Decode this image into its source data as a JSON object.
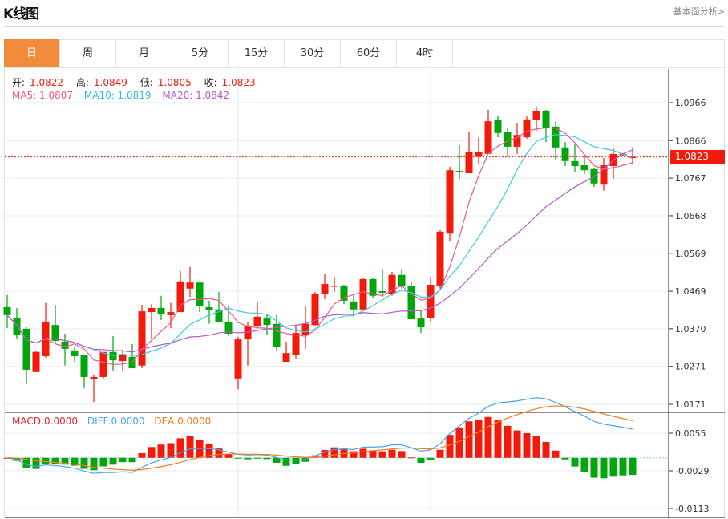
{
  "header": {
    "title": "K线图",
    "link": "基本面分析>"
  },
  "tabs": [
    {
      "label": "日",
      "active": true
    },
    {
      "label": "周"
    },
    {
      "label": "月"
    },
    {
      "label": "5分"
    },
    {
      "label": "15分"
    },
    {
      "label": "30分"
    },
    {
      "label": "60分"
    },
    {
      "label": "4时"
    }
  ],
  "ohlc": {
    "open_label": "开:",
    "open": "1.0822",
    "high_label": "高:",
    "high": "1.0849",
    "low_label": "低:",
    "low": "1.0805",
    "close_label": "收:",
    "close": "1.0823"
  },
  "ma": {
    "ma5": "MA5: 1.0807",
    "ma10": "MA10: 1.0819",
    "ma20": "MA20: 1.0842"
  },
  "macd": {
    "macd": "MACD:0.0000",
    "diff": "DIFF:0.0000",
    "dea": "DEA:0.0000"
  },
  "current_price": "1.0823",
  "colors": {
    "up": "#f21a0a",
    "down": "#00a60a",
    "ma5": "#f0588a",
    "ma10": "#3ccbe0",
    "ma20": "#b55ac8",
    "diff": "#4aa3e8",
    "dea": "#f57b1f",
    "accent": "#f28c3c"
  },
  "chart_data": {
    "type": "candlestick",
    "price_axis": {
      "ticks": [
        "1.0966",
        "1.0866",
        "1.0767",
        "1.0668",
        "1.0569",
        "1.0469",
        "1.0370",
        "1.0271",
        "1.0171"
      ],
      "range": [
        1.0171,
        1.0966
      ]
    },
    "macd_axis": {
      "ticks": [
        "0.0055",
        "-0.0029",
        "-0.0113"
      ],
      "range": [
        -0.0113,
        0.0055
      ]
    },
    "grid": true,
    "candles": [
      [
        1.0427,
        1.0459,
        1.0372,
        1.0406
      ],
      [
        1.0399,
        1.0425,
        1.0344,
        1.0353
      ],
      [
        1.037,
        1.0374,
        1.0224,
        1.0262
      ],
      [
        1.0256,
        1.0311,
        1.0256,
        1.0309
      ],
      [
        1.0298,
        1.0438,
        1.0294,
        1.0389
      ],
      [
        1.038,
        1.0433,
        1.0334,
        1.0338
      ],
      [
        1.0336,
        1.0357,
        1.0273,
        1.0317
      ],
      [
        1.0313,
        1.0321,
        1.0283,
        1.0298
      ],
      [
        1.03,
        1.03,
        1.0213,
        1.0243
      ],
      [
        1.0237,
        1.0249,
        1.0177,
        1.0243
      ],
      [
        1.0243,
        1.0309,
        1.0239,
        1.0309
      ],
      [
        1.0309,
        1.0351,
        1.026,
        1.0287
      ],
      [
        1.0285,
        1.0315,
        1.026,
        1.0302
      ],
      [
        1.0296,
        1.033,
        1.0266,
        1.0266
      ],
      [
        1.0273,
        1.0433,
        1.0266,
        1.0416
      ],
      [
        1.0414,
        1.0435,
        1.0342,
        1.0425
      ],
      [
        1.0425,
        1.0457,
        1.0393,
        1.0408
      ],
      [
        1.0406,
        1.0438,
        1.0372,
        1.0414
      ],
      [
        1.0414,
        1.0522,
        1.0414,
        1.0495
      ],
      [
        1.0476,
        1.0533,
        1.0454,
        1.0492
      ],
      [
        1.0492,
        1.0492,
        1.0414,
        1.0429
      ],
      [
        1.0427,
        1.0444,
        1.0383,
        1.0419
      ],
      [
        1.0421,
        1.0467,
        1.0387,
        1.0387
      ],
      [
        1.0389,
        1.0433,
        1.0351,
        1.0357
      ],
      [
        1.0239,
        1.0349,
        1.0211,
        1.0342
      ],
      [
        1.0342,
        1.0387,
        1.0273,
        1.0376
      ],
      [
        1.0376,
        1.0442,
        1.037,
        1.0402
      ],
      [
        1.0397,
        1.0406,
        1.0353,
        1.038
      ],
      [
        1.0383,
        1.0406,
        1.0313,
        1.0323
      ],
      [
        1.0283,
        1.0336,
        1.0283,
        1.0306
      ],
      [
        1.03,
        1.038,
        1.0292,
        1.0359
      ],
      [
        1.0355,
        1.0429,
        1.0317,
        1.0383
      ],
      [
        1.038,
        1.0467,
        1.0376,
        1.0463
      ],
      [
        1.0461,
        1.0514,
        1.0448,
        1.0488
      ],
      [
        1.0482,
        1.0507,
        1.0467,
        1.0484
      ],
      [
        1.0484,
        1.0486,
        1.0435,
        1.0444
      ],
      [
        1.0442,
        1.0461,
        1.0402,
        1.0421
      ],
      [
        1.0421,
        1.0503,
        1.0421,
        1.0501
      ],
      [
        1.0501,
        1.0505,
        1.045,
        1.0457
      ],
      [
        1.0469,
        1.0528,
        1.0454,
        1.0465
      ],
      [
        1.0461,
        1.052,
        1.0457,
        1.0512
      ],
      [
        1.0512,
        1.0528,
        1.0476,
        1.0482
      ],
      [
        1.0484,
        1.0492,
        1.0395,
        1.0395
      ],
      [
        1.0397,
        1.0419,
        1.0359,
        1.0374
      ],
      [
        1.0399,
        1.0503,
        1.0389,
        1.0486
      ],
      [
        1.0482,
        1.063,
        1.0476,
        1.0626
      ],
      [
        1.0621,
        1.0797,
        1.0602,
        1.0788
      ],
      [
        1.0786,
        1.0854,
        1.0765,
        1.0782
      ],
      [
        1.078,
        1.089,
        1.078,
        1.0837
      ],
      [
        1.0826,
        1.0875,
        1.0805,
        1.0835
      ],
      [
        1.0831,
        1.0947,
        1.0831,
        1.0917
      ],
      [
        1.092,
        1.0932,
        1.0875,
        1.0886
      ],
      [
        1.0888,
        1.0898,
        1.0824,
        1.085
      ],
      [
        1.085,
        1.0913,
        1.0831,
        1.0881
      ],
      [
        1.0875,
        1.093,
        1.0871,
        1.0922
      ],
      [
        1.092,
        1.0955,
        1.0892,
        1.0945
      ],
      [
        1.0945,
        1.0947,
        1.0862,
        1.09
      ],
      [
        1.0903,
        1.0917,
        1.0816,
        1.0848
      ],
      [
        1.0848,
        1.0862,
        1.0799,
        1.0812
      ],
      [
        1.0812,
        1.0858,
        1.0784,
        1.0799
      ],
      [
        1.0801,
        1.0829,
        1.0778,
        1.0788
      ],
      [
        1.0791,
        1.0795,
        1.0744,
        1.0753
      ],
      [
        1.075,
        1.082,
        1.0734,
        1.0801
      ],
      [
        1.0799,
        1.0846,
        1.0765,
        1.0831
      ],
      [
        1.0829,
        1.0831,
        1.0826,
        1.0831
      ],
      [
        1.0822,
        1.0849,
        1.0805,
        1.0823
      ]
    ]
  }
}
